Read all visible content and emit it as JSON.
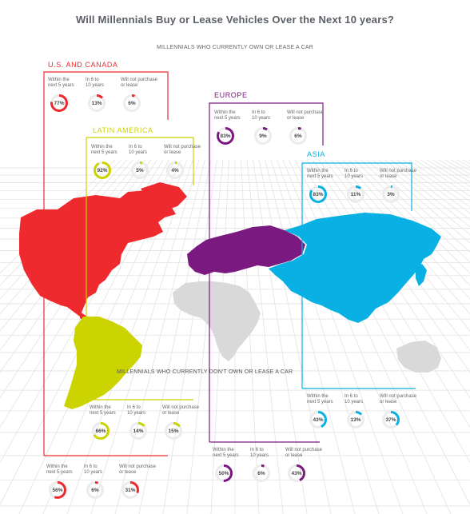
{
  "title": "Will Millennials Buy or Lease Vehicles Over the Next 10 years?",
  "subtitle_own": "MILLENNIALS WHO CURRENTLY OWN OR LEASE A CAR",
  "subtitle_dont_own": "MILLENNIALS WHO CURRENTLY DON'T OWN OR LEASE A CAR",
  "categories": [
    "Within the next 5 years",
    "In 6 to 10 years",
    "Will not purchase or lease"
  ],
  "category_labels": [
    [
      "Within the",
      "next 5 years"
    ],
    [
      "In 6 to",
      "10 years"
    ],
    [
      "Will not purchase",
      "or lease"
    ]
  ],
  "colors": {
    "us_canada": "#ee2a2e",
    "latin_america": "#cbd300",
    "europe": "#7a1a80",
    "asia": "#08b0e3",
    "other_land": "#d9d9d9"
  },
  "chart_data": {
    "type": "donut",
    "title": "Will Millennials Buy or Lease Vehicles Over the Next 10 years?",
    "categories": [
      "Within the next 5 years",
      "In 6 to 10 years",
      "Will not purchase or lease"
    ],
    "groups": [
      {
        "name": "MILLENNIALS WHO CURRENTLY OWN OR LEASE A CAR",
        "series": [
          {
            "name": "U.S. AND CANADA",
            "values": [
              77,
              13,
              6
            ]
          },
          {
            "name": "LATIN AMERICA",
            "values": [
              92,
              5,
              4
            ]
          },
          {
            "name": "EUROPE",
            "values": [
              83,
              9,
              6
            ]
          },
          {
            "name": "ASIA",
            "values": [
              83,
              11,
              3
            ]
          }
        ]
      },
      {
        "name": "MILLENNIALS WHO CURRENTLY DON'T OWN OR LEASE A CAR",
        "series": [
          {
            "name": "U.S. AND CANADA",
            "values": [
              56,
              6,
              31
            ]
          },
          {
            "name": "LATIN AMERICA",
            "values": [
              66,
              14,
              15
            ]
          },
          {
            "name": "EUROPE",
            "values": [
              50,
              6,
              43
            ]
          },
          {
            "name": "ASIA",
            "values": [
              43,
              13,
              37
            ]
          }
        ]
      }
    ]
  },
  "regions": {
    "us_canada": "U.S. AND CANADA",
    "latin_america": "LATIN AMERICA",
    "europe": "EUROPE",
    "asia": "ASIA"
  }
}
